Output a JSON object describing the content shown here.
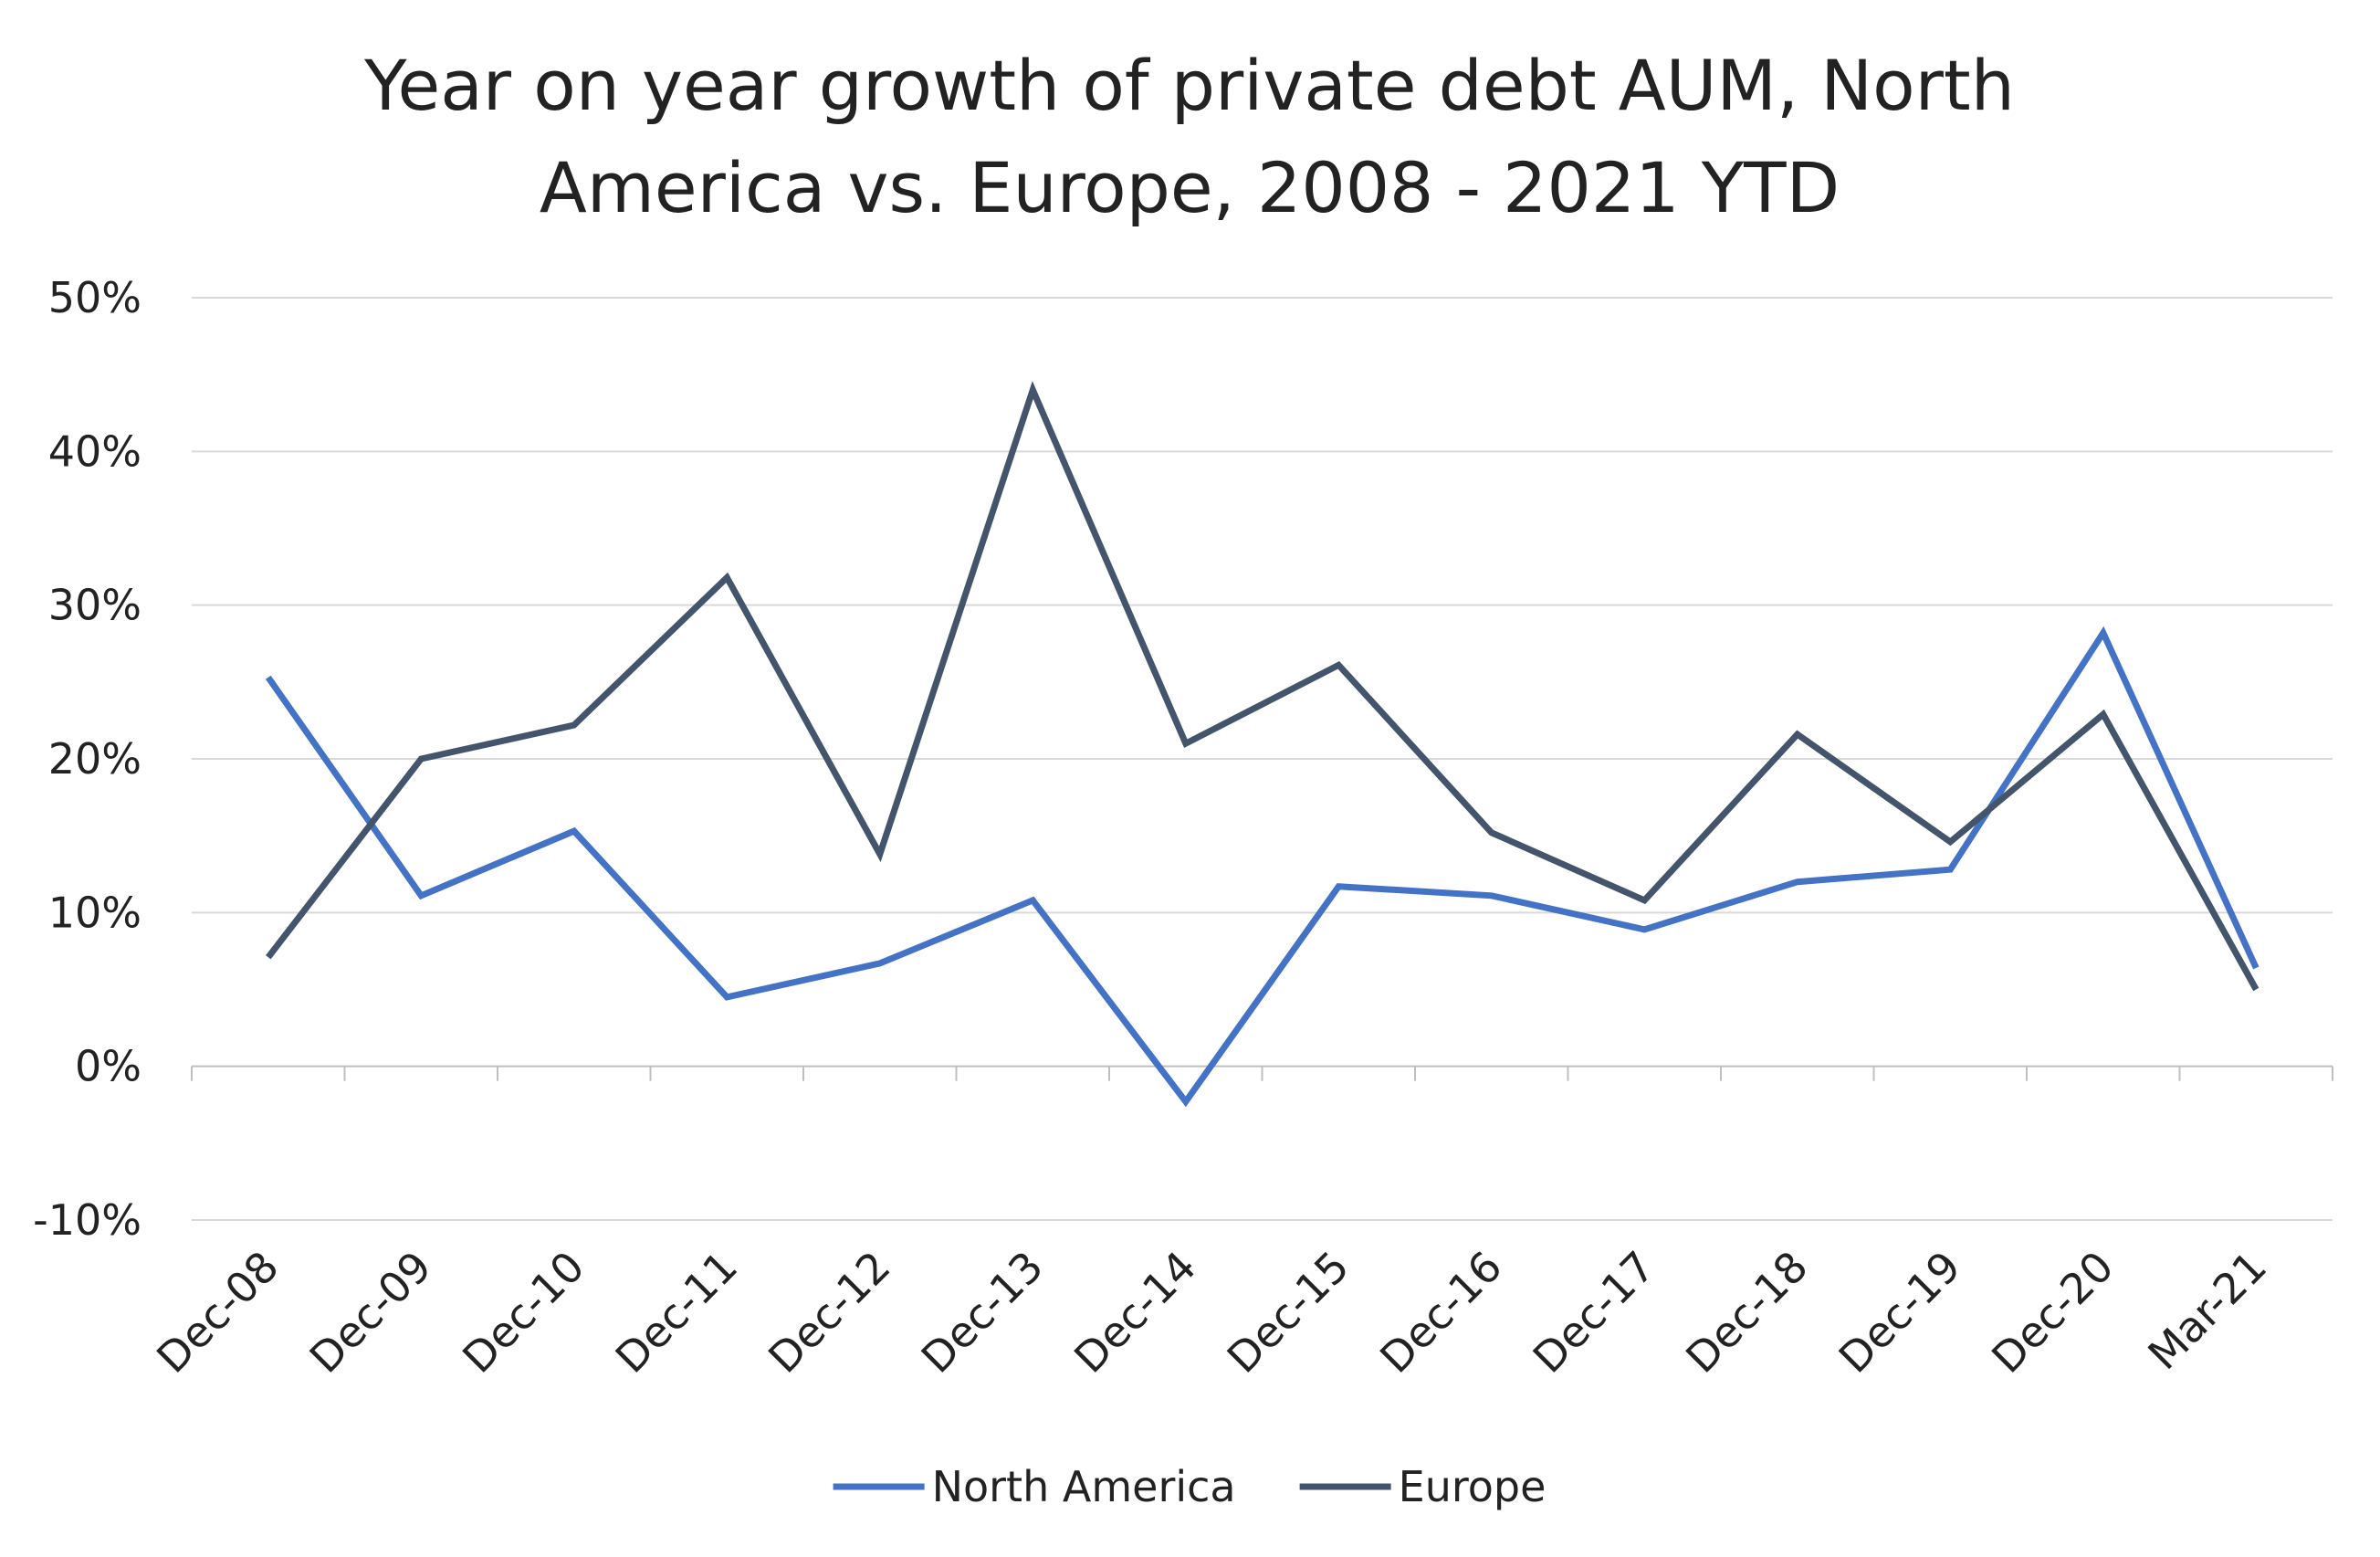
{
  "chart_data": {
    "type": "line",
    "title": "Year on year growth of private debt AUM, North America vs. Europe, 2008 - 2021 YTD",
    "title_lines": [
      "Year on year growth of private debt AUM, North",
      "America vs. Europe, 2008 - 2021 YTD"
    ],
    "xlabel": "",
    "ylabel": "",
    "categories": [
      "Dec-08",
      "Dec-09",
      "Dec-10",
      "Dec-11",
      "Dec-12",
      "Dec-13",
      "Dec-14",
      "Dec-15",
      "Dec-16",
      "Dec-17",
      "Dec-18",
      "Dec-19",
      "Dec-20",
      "Mar-21"
    ],
    "ylim": [
      -10,
      50
    ],
    "yticks": [
      -10,
      0,
      10,
      20,
      30,
      40,
      50
    ],
    "ytick_labels": [
      "-10%",
      "0%",
      "10%",
      "20%",
      "30%",
      "40%",
      "50%"
    ],
    "grid": true,
    "legend_position": "bottom",
    "series": [
      {
        "name": "North America",
        "color": "#4472C4",
        "values": [
          25.3,
          11.1,
          15.3,
          4.5,
          6.7,
          10.8,
          -2.3,
          11.7,
          11.1,
          8.9,
          12.0,
          12.8,
          28.2,
          6.4
        ]
      },
      {
        "name": "Europe",
        "color": "#44546A",
        "values": [
          7.1,
          20.0,
          22.2,
          31.8,
          13.8,
          44.0,
          21.0,
          26.1,
          15.2,
          10.8,
          21.6,
          14.6,
          22.9,
          5.0
        ]
      }
    ]
  }
}
